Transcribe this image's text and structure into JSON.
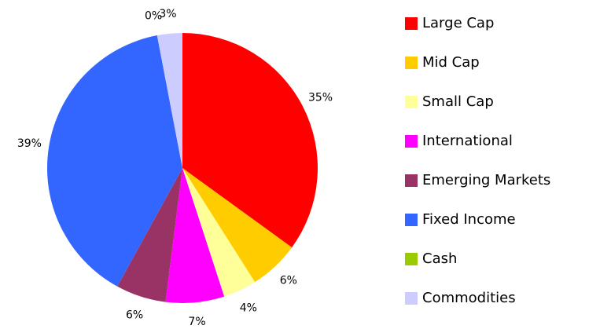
{
  "chart_data": {
    "type": "pie",
    "categories": [
      "Large Cap",
      "Mid Cap",
      "Small Cap",
      "International",
      "Emerging Markets",
      "Fixed Income",
      "Cash",
      "Commodities"
    ],
    "values": [
      35,
      6,
      4,
      7,
      6,
      39,
      0,
      3
    ],
    "value_labels": [
      "35%",
      "6%",
      "4%",
      "7%",
      "6%",
      "39%",
      "0%",
      "3%"
    ],
    "colors": [
      "#ff0000",
      "#ffcc00",
      "#ffff99",
      "#ff00ff",
      "#993366",
      "#3366ff",
      "#99cc00",
      "#ccccff"
    ],
    "legend": "right"
  }
}
